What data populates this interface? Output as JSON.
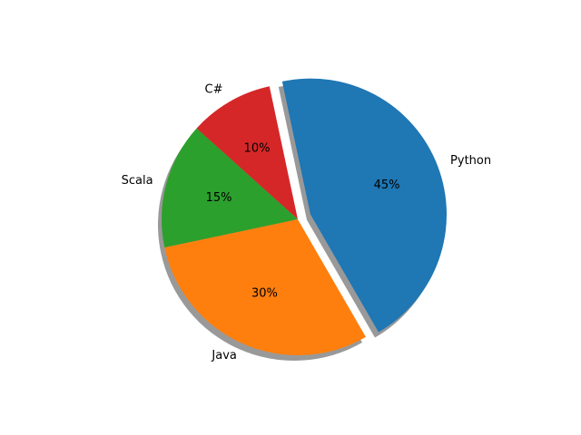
{
  "chart_data": {
    "type": "pie",
    "categories": [
      "Python",
      "C#",
      "Scala",
      "Java"
    ],
    "values": [
      45,
      10,
      15,
      30
    ],
    "value_labels": [
      "45%",
      "10%",
      "15%",
      "30%"
    ],
    "colors": [
      "#1f77b4",
      "#d62728",
      "#2ca02c",
      "#ff7f0e"
    ],
    "explode": [
      0.1,
      0,
      0,
      0
    ],
    "start_angle_deg": -60,
    "direction": "counterclockwise",
    "shadow": true,
    "legend": "none",
    "title": ""
  }
}
